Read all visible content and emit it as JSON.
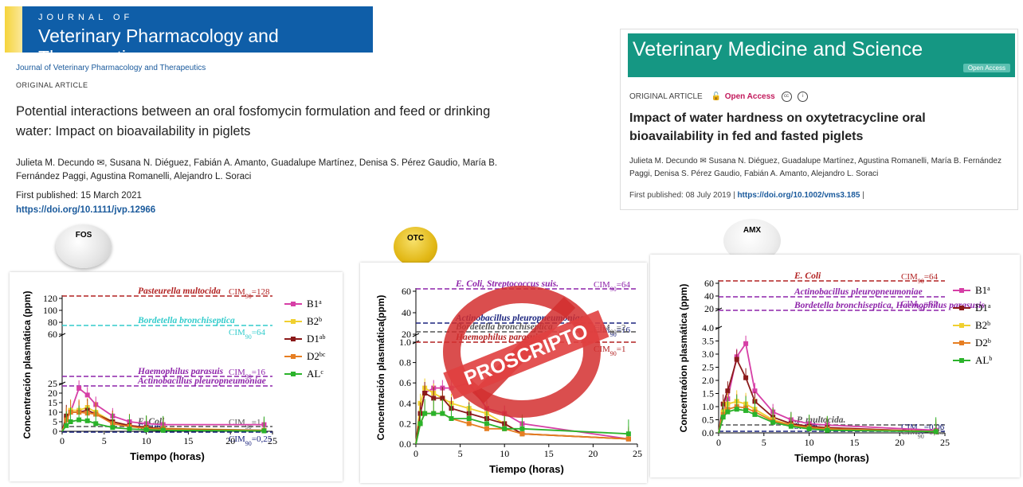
{
  "paper1": {
    "journal_banner_top": "JOURNAL OF",
    "journal_banner_main": "Veterinary Pharmacology and Therapeutics",
    "journal_name": "Journal of Veterinary Pharmacology and Therapeutics",
    "article_type": "ORIGINAL ARTICLE",
    "title": "Potential interactions between an oral fosfomycin formulation and feed or drinking water: Impact on bioavailability in piglets",
    "authors": "Julieta M. Decundo ✉,  Susana N. Diéguez,  Fabián A. Amanto,  Guadalupe Martínez,  Denisa S. Pérez Gaudio,  María B. Fernández Paggi,  Agustina Romanelli,  Alejandro L. Soraci",
    "first_published": "First published: 15 March 2021",
    "doi": "https://doi.org/10.1111/jvp.12966"
  },
  "paper2": {
    "journal_banner": "Veterinary Medicine and Science",
    "open_access_badge": "Open Access",
    "article_type": "ORIGINAL ARTICLE",
    "open_access": "Open Access",
    "title": "Impact of water hardness on oxytetracycline oral bioavailability in fed and fasted piglets",
    "authors": "Julieta M. Decundo ✉  Susana N. Diéguez, Guadalupe Martínez, Agustina Romanelli, María B. Fernández Paggi, Denisa S. Pérez Gaudio, Fabián A. Amanto, Alejandro L. Soraci",
    "first_published": "First published: 08 July 2019",
    "doi": "https://doi.org/10.1002/vms3.185"
  },
  "drug_labels": {
    "fos": "FOS",
    "otc": "OTC",
    "amx": "AMX"
  },
  "stamp_text": "PROSCRIPTO",
  "colors": {
    "jvpt": "#0f5ea8",
    "vms": "#159783",
    "stamp": "#d32f2f"
  },
  "chart_data": [
    {
      "type": "line",
      "drug": "FOS",
      "xlabel": "Tiempo (horas)",
      "ylabel": "Concentración plasmática (ppm)",
      "xticks": [
        "0",
        "5",
        "10",
        "15",
        "20",
        "25"
      ],
      "yticks_low": [
        "0",
        "5",
        "10",
        "15",
        "20",
        "25"
      ],
      "yticks_high": [
        "60",
        "80",
        "100",
        "120"
      ],
      "x": [
        0,
        0.5,
        1,
        2,
        3,
        4,
        6,
        8,
        10,
        12,
        24
      ],
      "series": [
        {
          "name": "B1",
          "sup": "a",
          "color": "#d63fa6",
          "values": [
            0,
            6,
            10,
            22.5,
            19,
            14,
            8,
            5,
            4,
            3.5,
            3.5
          ]
        },
        {
          "name": "B2",
          "sup": "b",
          "color": "#f0d030",
          "values": [
            0,
            7,
            11,
            11,
            12.5,
            10,
            5,
            3,
            2,
            1.5,
            0.5
          ]
        },
        {
          "name": "D1",
          "sup": "ab",
          "color": "#8b1a1a",
          "values": [
            0,
            8,
            10,
            10,
            11,
            9,
            5,
            3,
            2,
            1.2,
            0.5
          ]
        },
        {
          "name": "D2",
          "sup": "bc",
          "color": "#e67e22",
          "values": [
            0,
            6,
            10,
            10,
            9.5,
            9,
            4,
            2.5,
            1.5,
            1,
            0.4
          ]
        },
        {
          "name": "AL",
          "sup": "c",
          "color": "#2bb32b",
          "values": [
            0,
            3,
            5,
            6,
            5.5,
            4,
            2,
            1.2,
            0.8,
            0.5,
            0.2
          ]
        }
      ],
      "thresholds": [
        {
          "organism": "Pasteurella multocida",
          "label": "CIM",
          "sub": "90",
          "value": "=128",
          "color": "#b22222"
        },
        {
          "organism": "Bordetella bronchiseptica",
          "label": "CIM",
          "sub": "90",
          "value": "=64",
          "color": "#33cccc"
        },
        {
          "organism": "Haemophilus parasuis",
          "label": "CIM",
          "sub": "90",
          "value": "=16",
          "color": "#8e24aa"
        },
        {
          "organism": "Actinobacillus pleuropneumoniae",
          "label": "",
          "sub": "",
          "value": "",
          "color": "#8e24aa"
        },
        {
          "organism": "E. Coli",
          "label": "CIM",
          "sub": "90",
          "value": "=1",
          "color": "#555"
        },
        {
          "organism": "S. suis",
          "label": "CIM",
          "sub": "90",
          "value": "=0,25",
          "color": "#1a237e"
        }
      ]
    },
    {
      "type": "line",
      "drug": "OTC",
      "xlabel": "Tiempo (horas)",
      "ylabel": "Concentración plasmática(ppm)",
      "xticks": [
        "0",
        "5",
        "10",
        "15",
        "20",
        "25"
      ],
      "yticks_low": [
        "0.0",
        "0.2",
        "0.4",
        "0.6",
        "0.8",
        "1.0"
      ],
      "yticks_high": [
        "20",
        "40",
        "60"
      ],
      "x": [
        0,
        0.5,
        1,
        2,
        3,
        4,
        6,
        8,
        10,
        12,
        24
      ],
      "series": [
        {
          "name": "B1",
          "color": "#d63fa6",
          "values": [
            0,
            0.3,
            0.5,
            0.55,
            0.55,
            0.55,
            0.6,
            0.35,
            0.3,
            0.2,
            0.05
          ]
        },
        {
          "name": "B2",
          "color": "#f0d030",
          "values": [
            0,
            0.4,
            0.55,
            0.5,
            0.45,
            0.4,
            0.35,
            0.3,
            0.2,
            0.1,
            0.05
          ]
        },
        {
          "name": "D1",
          "color": "#8b1a1a",
          "values": [
            0,
            0.3,
            0.5,
            0.45,
            0.45,
            0.35,
            0.3,
            0.25,
            0.2,
            0.1,
            0.05
          ]
        },
        {
          "name": "D2",
          "color": "#e67e22",
          "values": [
            0,
            0.2,
            0.3,
            0.3,
            0.3,
            0.25,
            0.2,
            0.15,
            0.15,
            0.1,
            0.05
          ]
        },
        {
          "name": "AL",
          "color": "#2bb32b",
          "values": [
            0,
            0.2,
            0.3,
            0.3,
            0.3,
            0.25,
            0.25,
            0.2,
            0.15,
            0.15,
            0.1
          ]
        }
      ],
      "thresholds": [
        {
          "organism": "E. Coli, Streptococcus suis.",
          "label": "CIM",
          "sub": "90",
          "value": "=64",
          "color": "#8e24aa"
        },
        {
          "organism": "Actinobacillus pleuropneumoniae",
          "label": "CIM",
          "sub": "90",
          "value": "=16",
          "color": "#1a237e"
        },
        {
          "organism": "Bordetella bronchiseptica",
          "label": "CIM",
          "sub": "90",
          "value": "=2",
          "color": "#555"
        },
        {
          "organism": "Haemophilus parasuis",
          "label": "CIM",
          "sub": "90",
          "value": "=1",
          "color": "#b22222"
        }
      ]
    },
    {
      "type": "line",
      "drug": "AMX",
      "xlabel": "Tiempo (horas)",
      "ylabel": "Concentraóion plasmática (ppm)",
      "xticks": [
        "0",
        "5",
        "10",
        "15",
        "20",
        "25"
      ],
      "yticks_low": [
        "0.0",
        "0.5",
        "1.0",
        "1.5",
        "2.0",
        "2.5",
        "3.0",
        "3.5",
        "4.0"
      ],
      "yticks_high": [
        "20",
        "40",
        "60"
      ],
      "x": [
        0,
        0.5,
        1,
        2,
        3,
        4,
        6,
        8,
        10,
        12,
        24
      ],
      "series": [
        {
          "name": "B1",
          "sup": "a",
          "color": "#d63fa6",
          "values": [
            0,
            0.8,
            1.3,
            2.9,
            3.4,
            1.6,
            0.8,
            0.5,
            0.35,
            0.3,
            0.1
          ]
        },
        {
          "name": "D1",
          "sup": "a",
          "color": "#8b1a1a",
          "values": [
            0,
            1.1,
            1.6,
            2.8,
            2.1,
            1.2,
            0.6,
            0.35,
            0.25,
            0.2,
            0.05
          ]
        },
        {
          "name": "B2",
          "sup": "b",
          "color": "#f0d030",
          "values": [
            0,
            0.8,
            1.1,
            1.2,
            1.1,
            0.9,
            0.5,
            0.3,
            0.2,
            0.15,
            0.05
          ]
        },
        {
          "name": "D2",
          "sup": "b",
          "color": "#e67e22",
          "values": [
            0,
            0.7,
            0.9,
            1.0,
            0.95,
            0.8,
            0.45,
            0.3,
            0.2,
            0.15,
            0.05
          ]
        },
        {
          "name": "AL",
          "sup": "b",
          "color": "#2bb32b",
          "values": [
            0,
            0.6,
            0.8,
            0.9,
            0.85,
            0.7,
            0.4,
            0.25,
            0.15,
            0.1,
            0.05
          ]
        }
      ],
      "thresholds": [
        {
          "organism": "E. Coli",
          "label": "CIM",
          "sub": "90",
          "value": "=64",
          "color": "#b22222"
        },
        {
          "organism": "Actinobacillus pleuropneumoniae",
          "label": "CIM",
          "sub": "90",
          "value": "=32",
          "color": "#8e24aa"
        },
        {
          "organism": "Bordetella bronchiseptica, Haemophilus parasusis",
          "label": "",
          "sub": "",
          "value": "",
          "color": "#8e24aa"
        },
        {
          "organism": ".P. multocida.",
          "label": "CIM",
          "sub": "90",
          "value": "=0,25",
          "color": "#555"
        },
        {
          "organism": "S. suis.",
          "label": "CIM",
          "sub": "90",
          "value": "=0,06",
          "color": "#1a237e"
        }
      ]
    }
  ]
}
